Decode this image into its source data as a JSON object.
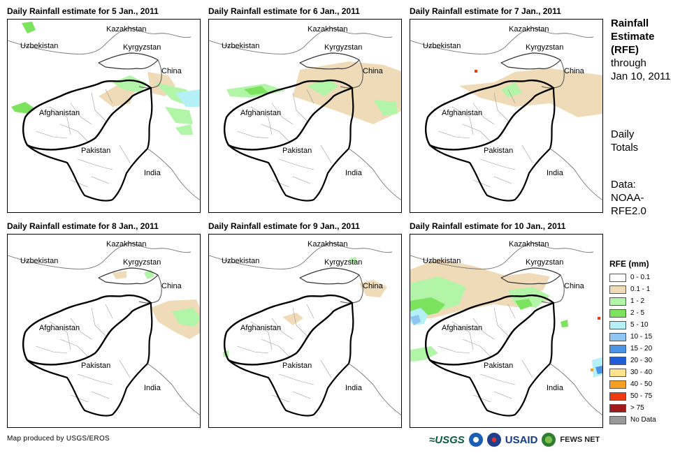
{
  "panels": [
    {
      "title": "Daily Rainfall estimate for 5 Jan., 2011"
    },
    {
      "title": "Daily Rainfall estimate for 6 Jan., 2011"
    },
    {
      "title": "Daily Rainfall estimate for 7 Jan., 2011"
    },
    {
      "title": "Daily Rainfall estimate for 8 Jan., 2011"
    },
    {
      "title": "Daily Rainfall estimate for 9 Jan., 2011"
    },
    {
      "title": "Daily Rainfall estimate for 10 Jan., 2011"
    }
  ],
  "countries": {
    "kazakhstan": "Kazakhstan",
    "uzbekistan": "Uzbekistan",
    "kyrgyzstan": "Kyrgyzstan",
    "china": "China",
    "afghanistan": "Afghanistan",
    "pakistan": "Pakistan",
    "india": "India"
  },
  "sidebar": {
    "title_line1": "Rainfall",
    "title_line2": "Estimate",
    "title_line3": "(RFE)",
    "through": "through",
    "date": "Jan 10, 2011",
    "daily1": "Daily",
    "daily2": "Totals",
    "data1": "Data:",
    "data2": "NOAA-",
    "data3": "RFE2.0"
  },
  "legend": {
    "title": "RFE (mm)",
    "items": [
      {
        "label": "0 - 0.1",
        "color": "#ffffff"
      },
      {
        "label": "0.1 - 1",
        "color": "#f0dbb8"
      },
      {
        "label": "1 - 2",
        "color": "#b3f5a8"
      },
      {
        "label": "2 - 5",
        "color": "#7be35e"
      },
      {
        "label": "5 - 10",
        "color": "#b4f0f5"
      },
      {
        "label": "10 - 15",
        "color": "#8ec5f2"
      },
      {
        "label": "15 - 20",
        "color": "#4a94e8"
      },
      {
        "label": "20 - 30",
        "color": "#1f5ed8"
      },
      {
        "label": "30 - 40",
        "color": "#ffe38a"
      },
      {
        "label": "40 - 50",
        "color": "#f5a020"
      },
      {
        "label": "50 - 75",
        "color": "#ee3a12"
      },
      {
        "label": "> 75",
        "color": "#a31a1a"
      },
      {
        "label": "No Data",
        "color": "#9a9a9a"
      }
    ]
  },
  "footer": {
    "credit": "Map produced by USGS/EROS",
    "logo_usgs": "≈USGS",
    "logo_usaid": "USAID",
    "logo_fews": "FEWS NET"
  }
}
